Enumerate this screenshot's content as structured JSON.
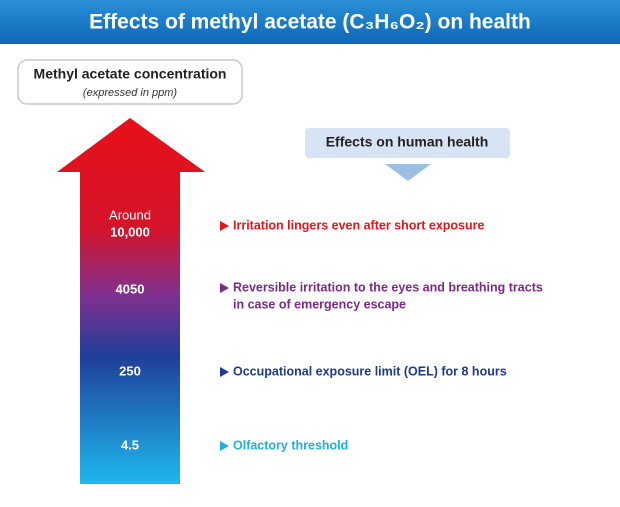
{
  "title": "Effects of methyl acetate (C₃H₆O₂) on health",
  "concentration_box": {
    "title": "Methyl acetate concentration",
    "subtitle": "(expressed in ppm)"
  },
  "effects_header": "Effects on human health",
  "levels": [
    {
      "qualifier": "Around",
      "value": "10,000",
      "color": "#e3161e",
      "effect": [
        "Irritation lingers even after short exposure"
      ]
    },
    {
      "value": "4050",
      "color": "#7b2a86",
      "effect": [
        "Reversible irritation to the eyes and breathing tracts",
        "in case of emergency escape"
      ]
    },
    {
      "value": "250",
      "color": "#1e3a8a",
      "effect": [
        "Occupational exposure limit (OEL) for 8 hours"
      ]
    },
    {
      "value": "4.5",
      "color": "#22aee0",
      "effect": [
        "Olfactory threshold"
      ]
    }
  ]
}
